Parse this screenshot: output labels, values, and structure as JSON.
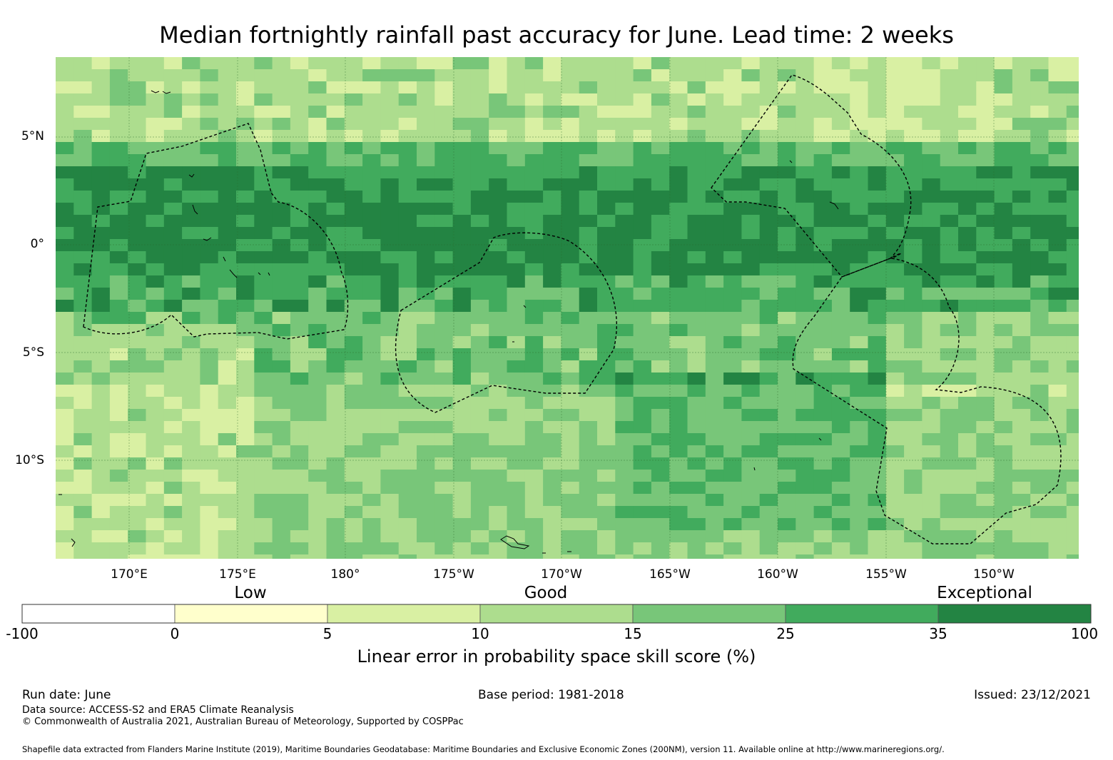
{
  "title": "Median fortnightly rainfall past accuracy for June. Lead time: 2 weeks",
  "map": {
    "lon_labels": [
      "170°E",
      "175°E",
      "180°",
      "175°W",
      "170°W",
      "165°W",
      "160°W",
      "155°W",
      "150°W"
    ],
    "lat_labels": [
      "5°N",
      "0°",
      "5°S",
      "10°S"
    ]
  },
  "colorbar": {
    "categories": [
      "Low",
      "Good",
      "Exceptional"
    ],
    "ticks": [
      "-100",
      "0",
      "5",
      "10",
      "15",
      "25",
      "35",
      "100"
    ],
    "colors": [
      "#ffffff",
      "#ffffcc",
      "#d9f0a3",
      "#addd8e",
      "#78c679",
      "#41ab5d",
      "#238443"
    ],
    "label": "Linear error in probability space skill score (%)"
  },
  "footer": {
    "run_date": "Run date: June",
    "base_period": "Base period: 1981-2018",
    "issued": "Issued: 23/12/2021",
    "data_source": "Data source: ACCESS-S2 and ERA5 Climate Reanalysis",
    "copyright": "© Commonwealth of Australia 2021, Australian Bureau of Meteorology, Supported by COSPPac",
    "shapefile": "Shapefile data extracted from Flanders Marine Institute (2019), Maritime Boundaries Geodatabase: Maritime Boundaries and Exclusive Economic Zones (200NM), version 11. Available online at http://www.marineregions.org/."
  }
}
